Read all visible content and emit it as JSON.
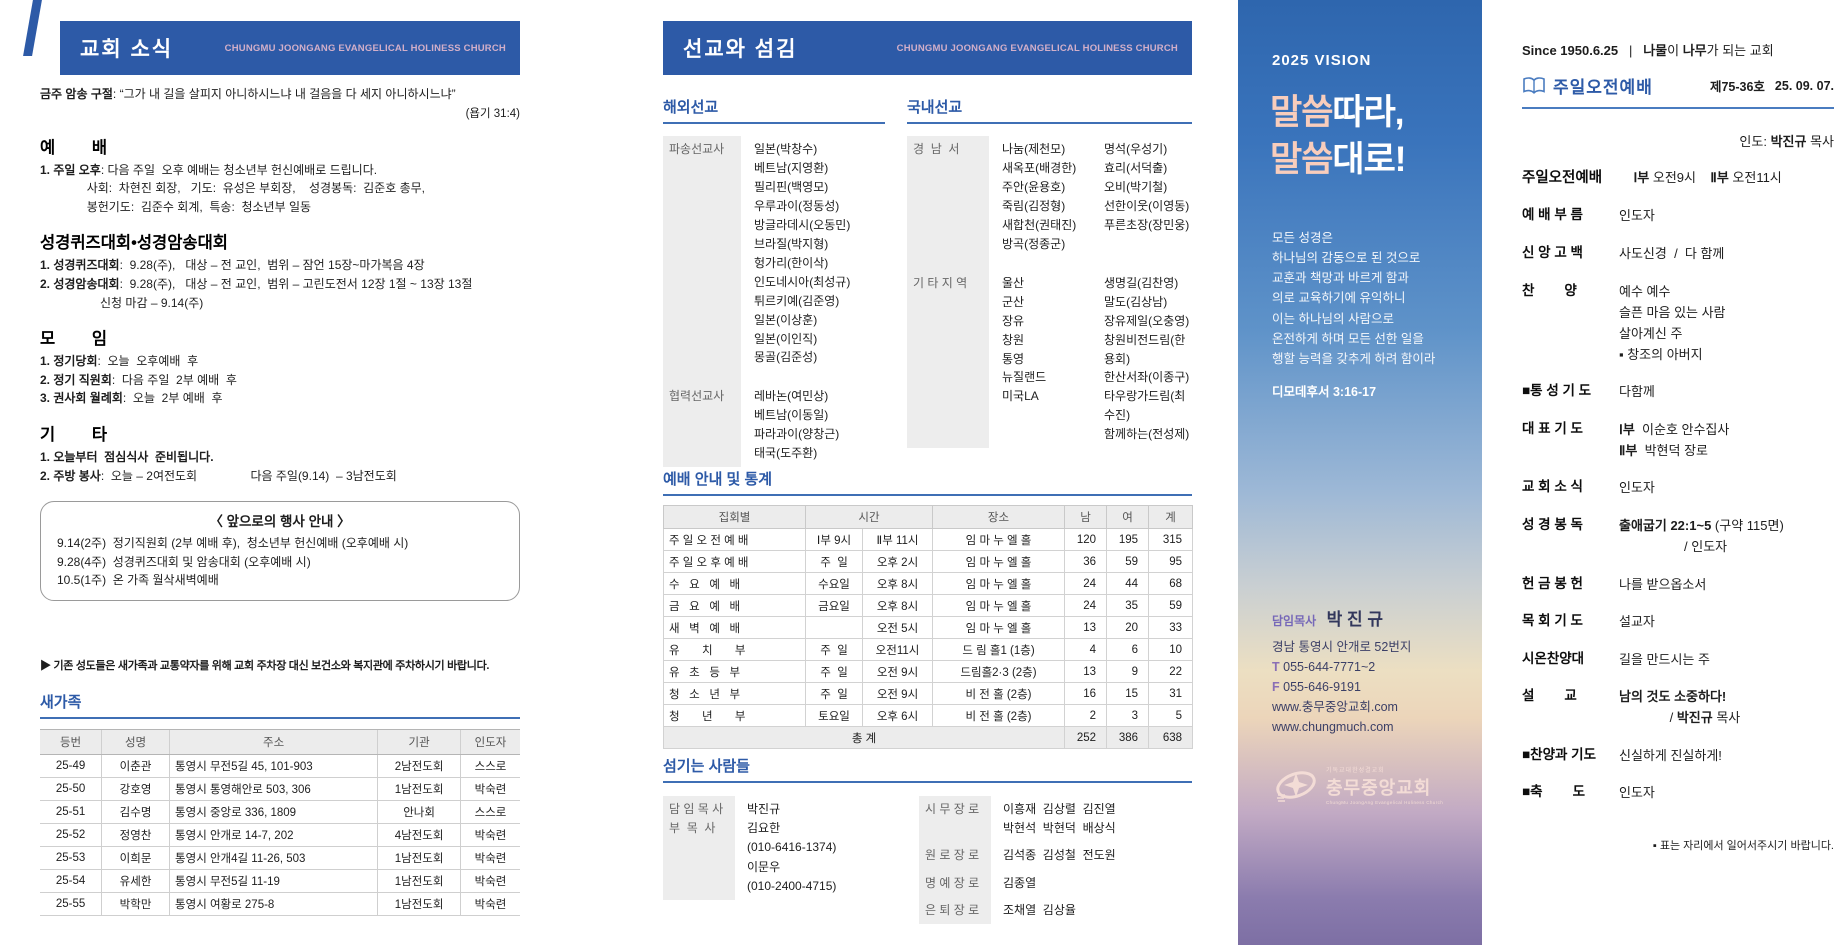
{
  "page": {
    "accent_blue": "#2d5aa7",
    "subtitle_pink": "#d2afc9"
  },
  "panel1": {
    "header": {
      "title": "교회 소식",
      "subtitle": "CHUNGMU JOONGANG EVANGELICAL HOLINESS CHURCH"
    },
    "verse": {
      "line": "**금주 암송 구절**: “그가 내 길을 살피지 아니하시느냐 내 걸음을 다 세지 아니하시느냐”",
      "ref": "(욥기 31:4)"
    },
    "sections": [
      {
        "title": "예        배",
        "body": "**1. 주일 오후**: 다음 주일  오후 예배는 청소년부 헌신예배로 드립니다.\n              사회:  차현진 회장,   기도:  유성은 부회장,    성경봉독:  김준호 총무,\n              봉헌기도:  김준수 회계,  특송:  청소년부 일동"
      },
      {
        "title": "성경퀴즈대회•성경암송대회",
        "body": "**1. 성경퀴즈대회**:  9.28(주),   대상 – 전 교인,  범위 – 잠언 15장~마가복음 4장\n**2. 성경암송대회**:  9.28(주),   대상 – 전 교인,  범위 – 고린도전서 12장 1절 ~ 13장 13절\n                  신청 마감 – 9.14(주)"
      },
      {
        "title": "모        임",
        "body": "**1. 정기당회**:  오늘  오후예배  후\n**2. 정기 직원회**:  다음 주일  2부 예배  후\n**3. 권사회 월례회**:  오늘  2부 예배  후"
      },
      {
        "title": "기        타",
        "body": "**1. 오늘부터  점심식사  준비됩니다.**\n**2. 주방 봉사**:  오늘 – 2여전도회                다음 주일(9.14)  – 3남전도회"
      }
    ],
    "event_box": {
      "title": "〈 앞으로의 행사 안내 〉",
      "body": "9.14(2주)  정기직원회 (2부 예배 후),  청소년부 헌신예배 (오후예배 시)\n9.28(4주)  성경퀴즈대회 및 암송대회 (오후예배 시)\n10.5(1주)  온 가족 월삭새벽예배"
    },
    "parking_notice": "▶ 기존 성도들은 새가족과 교통약자를 위해 교회 주차장 대신 보건소와 복지관에 주차하시기 바랍니다.",
    "new_family": {
      "title": "새가족",
      "headers": [
        "등번",
        "성명",
        "주소",
        "기관",
        "인도자"
      ],
      "rows": [
        [
          "25-49",
          "이춘관",
          "통영시 무전5길 45, 101-903",
          "2남전도회",
          "스스로"
        ],
        [
          "25-50",
          "강호영",
          "통영시 통영해안로 503, 306",
          "1남전도회",
          "박숙련"
        ],
        [
          "25-51",
          "김수명",
          "통영시 중앙로 336, 1809",
          "안나회",
          "스스로"
        ],
        [
          "25-52",
          "정영찬",
          "통영시 안개로 14-7, 202",
          "4남전도회",
          "박숙련"
        ],
        [
          "25-53",
          "이희문",
          "통영시 안개4길 11-26, 503",
          "1남전도회",
          "박숙련"
        ],
        [
          "25-54",
          "유세한",
          "통영시 무전5길 11-19",
          "1남전도회",
          "박숙련"
        ],
        [
          "25-55",
          "박학만",
          "통영시 여황로 275-8",
          "1남전도회",
          "박숙련"
        ]
      ]
    }
  },
  "panel2": {
    "header": {
      "title": "선교와 섬김",
      "subtitle": "CHUNGMU JOONGANG EVANGELICAL HOLINESS CHURCH"
    },
    "overseas": {
      "title": "해외선교",
      "groups": [
        {
          "label": "파송선교사",
          "names": "일본(박창수)\n베트남(지영환)\n필리핀(백영모)\n우루과이(정동성)\n방글라데시(오동민)\n브라질(박지형)\n헝가리(한이삭)\n인도네시아(최성규)\n튀르키예(김준영)\n일본(이상훈)\n일본(이인직)\n몽골(김준성)",
          "cls": ""
        },
        {
          "label": "협력선교사",
          "names": "레바논(여민상)\n베트남(이동일)\n파라과이(양창근)\n태국(도주환)",
          "cls": "last"
        }
      ]
    },
    "domestic": {
      "title": "국내선교",
      "groups": [
        {
          "label": "경  남  서",
          "col1": "나눔(제천모)\n새옥포(배경한)\n주안(윤용호)\n죽림(김정형)\n새합천(권태진)\n방곡(정종군)",
          "col2": "명석(우성기)\n효리(서덕출)\n오비(박기철)\n선한이웃(이영동)\n푸른초장(장민웅)",
          "cls": ""
        },
        {
          "label": "기 타 지 역",
          "col1": "울산\n군산\n장유\n창원\n통영\n뉴질랜드\n미국LA",
          "col2": "생명길(김찬영)\n말도(김상남)\n장유제일(오충영)\n창원비전드림(한용회)\n한산서좌(이종구)\n타우랑가드림(최수진)\n함께하는(전성제)",
          "cls": "last"
        }
      ]
    },
    "stats": {
      "title": "예배 안내 및 통계",
      "headers": {
        "meeting": "집회별",
        "time": "시간",
        "place": "장소",
        "male": "남",
        "female": "여",
        "total": "계"
      },
      "rows": [
        [
          "주 일 오 전 예 배",
          "Ⅰ부 9시",
          "Ⅱ부 11시",
          "임 마 누 엘 홀",
          "120",
          "195",
          "315"
        ],
        [
          "주 일 오 후 예 배",
          "주  일",
          "오후 2시",
          "임 마 누 엘 홀",
          "36",
          "59",
          "95"
        ],
        [
          "수   요   예   배",
          "수요일",
          "오후 8시",
          "임 마 누 엘 홀",
          "24",
          "44",
          "68"
        ],
        [
          "금   요   예   배",
          "금요일",
          "오후 8시",
          "임 마 누 엘 홀",
          "24",
          "35",
          "59"
        ],
        [
          "새   벽   예   배",
          "",
          "오전 5시",
          "임 마 누 엘 홀",
          "13",
          "20",
          "33"
        ],
        [
          "유       치       부",
          "주  일",
          "오전11시",
          "드 림 홀1 (1층)",
          "4",
          "6",
          "10"
        ],
        [
          "유   초   등   부",
          "주  일",
          "오전 9시",
          "드림홀2·3 (2층)",
          "13",
          "9",
          "22"
        ],
        [
          "청   소   년   부",
          "주  일",
          "오전 9시",
          "비 전 홀 (2층)",
          "16",
          "15",
          "31"
        ],
        [
          "청       년       부",
          "토요일",
          "오후 6시",
          "비 전 홀 (2층)",
          "2",
          "3",
          "5"
        ]
      ],
      "total_row": {
        "label": "총 계",
        "male": "252",
        "female": "386",
        "total": "638"
      }
    },
    "serving": {
      "title": "섬기는 사람들",
      "pastors": {
        "labels": "담 임 목 사\n부  목  사",
        "values": "박진규\n김요한\n(010-6416-1374)\n이문우\n(010-2400-4715)"
      },
      "elders": [
        {
          "label": "시 무 장 로",
          "value": "이흥재  김상렬  김진열\n박현석  박현덕  배상식"
        },
        {
          "label": "원 로 장 로",
          "value": "김석종  김성철  전도원"
        },
        {
          "label": "명 예 장 로",
          "value": "김종열"
        },
        {
          "label": "은 퇴 장 로",
          "value": "조채열  김상율"
        }
      ]
    }
  },
  "panel3": {
    "vision_label": "2025 VISION",
    "title": [
      {
        "hl": "말씀",
        "rest": "따라,"
      },
      {
        "hl": "말씀",
        "rest": "대로!"
      }
    ],
    "scripture": "모든 성경은\n하나님의 감동으로 된 것으로\n교훈과 책망과 바르게 함과\n의로 교육하기에 유익하니\n이는 하나님의 사람으로\n온전하게 하며 모든 선한 일을\n행할 능력을 갖추게 하려 함이라",
    "scripture_ref": "디모데후서 3:16-17",
    "pastor_label": "담임목사",
    "pastor_name": "박 진 규",
    "address": "경남 통영시 안개로 52번지\n**T** 055-644-7771~2\n**F** 055-646-9191\nwww.충무중앙교회.com\nwww.chungmuch.com",
    "logo": {
      "top": "기독교대한성결교회",
      "main": "충무중앙교회",
      "bottom": "ChungMu JoongAng Evangelical Holiness Church"
    }
  },
  "panel4": {
    "tagline": "**Since 1950.6.25**   |   **나물**이 **나무**가 되는 교회",
    "bulletin": {
      "title": "주일오전예배",
      "issue": "제75-36호",
      "date": "25. 09. 07."
    },
    "leader": "인도:  **박진규** 목사",
    "order": [
      {
        "label": "주일오전예배",
        "text": "    **Ⅰ부** 오전9시    **Ⅱ부** 오전11시",
        "cls": "first"
      },
      {
        "label": "예 배 부 름",
        "text": "인도자"
      },
      {
        "label": "신 앙 고 백",
        "text": "사도신경  /  다 함께"
      },
      {
        "label": "찬        양",
        "text": "예수 예수\n슬픈 마음 있는 사람\n살아계신 주\n▪ 창조의 아버지"
      },
      {
        "label": "■통 성 기 도",
        "text": "다함께"
      },
      {
        "label": "대 표 기 도",
        "text": "**Ⅰ부**  이순호 안수집사\n**Ⅱ부**  박현덕 장로"
      },
      {
        "label": "교 회 소 식",
        "text": "인도자"
      },
      {
        "label": "성 경 봉 독",
        "text": "**출애굽기 22:1~5** (구약 115면)\n                  / 인도자"
      },
      {
        "label": "헌 금 봉 헌",
        "text": "나를 받으옵소서"
      },
      {
        "label": "목 회 기 도",
        "text": "설교자"
      },
      {
        "label": "시온찬양대",
        "text": "길을 만드시는 주"
      },
      {
        "label": "설        교",
        "text": "**남의 것도 소중하다!**\n              / **박진규** 목사"
      },
      {
        "label": "■찬양과 기도",
        "text": "신실하게 진실하게!"
      },
      {
        "label": "■축        도",
        "text": "인도자"
      }
    ],
    "note": "▪ 표는 자리에서 일어서주시기 바랍니다."
  }
}
